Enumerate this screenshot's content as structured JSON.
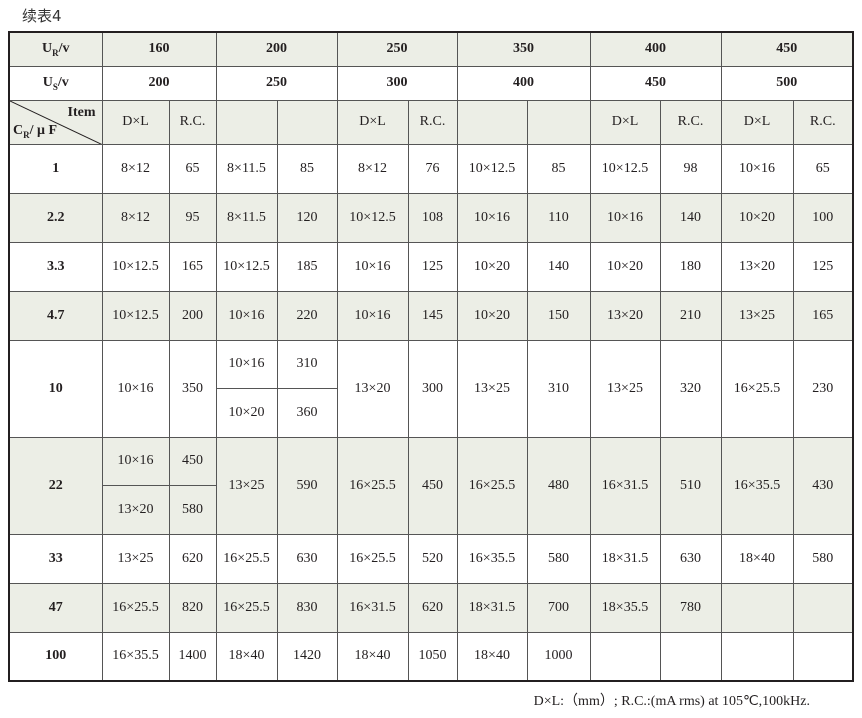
{
  "title": "续表4",
  "header": {
    "ur_label": "U",
    "ur_sub": "R",
    "ur_unit": "/v",
    "us_label": "U",
    "us_sub": "S",
    "us_unit": "/v",
    "item_label": "Item",
    "cr_label": "C",
    "cr_sub": "R",
    "cr_unit": "/ μ F",
    "ur_values": [
      "160",
      "200",
      "250",
      "350",
      "400",
      "450"
    ],
    "us_values": [
      "200",
      "250",
      "300",
      "400",
      "450",
      "500"
    ],
    "subheaders": [
      [
        "D×L",
        "R.C."
      ],
      [
        "",
        ""
      ],
      [
        "D×L",
        "R.C."
      ],
      [
        "",
        ""
      ],
      [
        "D×L",
        "R.C."
      ],
      [
        "D×L",
        "R.C."
      ]
    ]
  },
  "rows": [
    {
      "cr": "1",
      "cells": [
        [
          "8×12",
          "65"
        ],
        [
          "8×11.5",
          "85"
        ],
        [
          "8×12",
          "76"
        ],
        [
          "10×12.5",
          "85"
        ],
        [
          "10×12.5",
          "98"
        ],
        [
          "10×16",
          "65"
        ]
      ]
    },
    {
      "cr": "2.2",
      "cells": [
        [
          "8×12",
          "95"
        ],
        [
          "8×11.5",
          "120"
        ],
        [
          "10×12.5",
          "108"
        ],
        [
          "10×16",
          "110"
        ],
        [
          "10×16",
          "140"
        ],
        [
          "10×20",
          "100"
        ]
      ]
    },
    {
      "cr": "3.3",
      "cells": [
        [
          "10×12.5",
          "165"
        ],
        [
          "10×12.5",
          "185"
        ],
        [
          "10×16",
          "125"
        ],
        [
          "10×20",
          "140"
        ],
        [
          "10×20",
          "180"
        ],
        [
          "13×20",
          "125"
        ]
      ]
    },
    {
      "cr": "4.7",
      "cells": [
        [
          "10×12.5",
          "200"
        ],
        [
          "10×16",
          "220"
        ],
        [
          "10×16",
          "145"
        ],
        [
          "10×20",
          "150"
        ],
        [
          "13×20",
          "210"
        ],
        [
          "13×25",
          "165"
        ]
      ]
    },
    {
      "cr": "10",
      "cells": [
        [
          "10×16",
          "350"
        ],
        {
          "split": [
            [
              "10×16",
              "310"
            ],
            [
              "10×20",
              "360"
            ]
          ]
        },
        [
          "13×20",
          "300"
        ],
        [
          "13×25",
          "310"
        ],
        [
          "13×25",
          "320"
        ],
        [
          "16×25.5",
          "230"
        ]
      ]
    },
    {
      "cr": "22",
      "cells": [
        {
          "split": [
            [
              "10×16",
              "450"
            ],
            [
              "13×20",
              "580"
            ]
          ]
        },
        [
          "13×25",
          "590"
        ],
        [
          "16×25.5",
          "450"
        ],
        [
          "16×25.5",
          "480"
        ],
        [
          "16×31.5",
          "510"
        ],
        [
          "16×35.5",
          "430"
        ]
      ]
    },
    {
      "cr": "33",
      "cells": [
        [
          "13×25",
          "620"
        ],
        [
          "16×25.5",
          "630"
        ],
        [
          "16×25.5",
          "520"
        ],
        [
          "16×35.5",
          "580"
        ],
        [
          "18×31.5",
          "630"
        ],
        [
          "18×40",
          "580"
        ]
      ]
    },
    {
      "cr": "47",
      "cells": [
        [
          "16×25.5",
          "820"
        ],
        [
          "16×25.5",
          "830"
        ],
        [
          "16×31.5",
          "620"
        ],
        [
          "18×31.5",
          "700"
        ],
        [
          "18×35.5",
          "780"
        ],
        [
          "",
          ""
        ]
      ]
    },
    {
      "cr": "100",
      "cells": [
        [
          "16×35.5",
          "1400"
        ],
        [
          "18×40",
          "1420"
        ],
        [
          "18×40",
          "1050"
        ],
        [
          "18×40",
          "1000"
        ],
        [
          "",
          ""
        ],
        [
          "",
          ""
        ]
      ]
    }
  ],
  "footnote": "D×L:（mm）;   R.C.:(mA rms) at 105℃,100kHz."
}
